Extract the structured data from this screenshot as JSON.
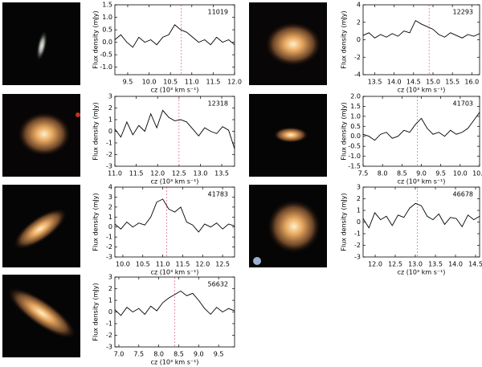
{
  "chart_data": [
    {
      "type": "line",
      "label": "11019",
      "xlabel": "cz (10³ km s⁻¹)",
      "ylabel": "Flux density (mJy)",
      "xlim": [
        9.2,
        12.0
      ],
      "xticks": [
        9.5,
        {
          "value": 10,
          "label": "10.0"
        },
        10.5,
        {
          "value": 11,
          "label": "11.0"
        },
        11.5,
        {
          "value": 12,
          "label": "12.0"
        }
      ],
      "ylim": [
        -1.3,
        1.5
      ],
      "yticks": [
        {
          "value": -1,
          "label": "-1.0"
        },
        -0.5,
        {
          "value": 0,
          "label": "0.0"
        },
        0.5,
        {
          "value": 1,
          "label": "1.0"
        },
        1.5
      ],
      "ref_x": 10.75,
      "x": [
        9.2,
        9.34,
        9.48,
        9.62,
        9.76,
        9.9,
        10.04,
        10.18,
        10.32,
        10.46,
        10.6,
        10.74,
        10.88,
        11.02,
        11.16,
        11.3,
        11.44,
        11.58,
        11.72,
        11.86,
        12.0
      ],
      "values": [
        0.1,
        0.3,
        0.0,
        -0.2,
        0.2,
        0.0,
        0.1,
        -0.1,
        0.2,
        0.3,
        0.7,
        0.5,
        0.4,
        0.2,
        0.0,
        0.1,
        -0.1,
        0.2,
        0.0,
        0.1,
        -0.1
      ]
    },
    {
      "type": "line",
      "label": "12293",
      "xlabel": "cz (10³ km s⁻¹)",
      "ylabel": "Flux density (mJy)",
      "xlim": [
        13.2,
        16.2
      ],
      "xticks": [
        13.5,
        {
          "value": 14,
          "label": "14.0"
        },
        14.5,
        {
          "value": 15,
          "label": "15.0"
        },
        15.5,
        {
          "value": 16,
          "label": "16.0"
        }
      ],
      "ylim": [
        -4,
        4
      ],
      "yticks": [
        -4,
        -2,
        0,
        2,
        4
      ],
      "ref_x": 14.9,
      "x": [
        13.2,
        13.35,
        13.5,
        13.65,
        13.8,
        13.95,
        14.1,
        14.25,
        14.4,
        14.55,
        14.7,
        14.85,
        15.0,
        15.15,
        15.3,
        15.45,
        15.6,
        15.75,
        15.9,
        16.05,
        16.2
      ],
      "values": [
        0.5,
        0.8,
        0.2,
        0.6,
        0.3,
        0.7,
        0.4,
        1.0,
        0.8,
        2.2,
        1.8,
        1.5,
        1.2,
        0.6,
        0.3,
        0.8,
        0.5,
        0.2,
        0.6,
        0.4,
        0.7
      ]
    },
    {
      "type": "line",
      "label": "12318",
      "xlabel": "cz (10³ km s⁻¹)",
      "ylabel": "Flux density (mJy)",
      "xlim": [
        11.0,
        13.8
      ],
      "xticks": [
        {
          "value": 11,
          "label": "11.0"
        },
        11.5,
        {
          "value": 12,
          "label": "12.0"
        },
        12.5,
        {
          "value": 13,
          "label": "13.0"
        },
        13.5
      ],
      "ylim": [
        -3,
        3
      ],
      "yticks": [
        -3,
        -2,
        -1,
        0,
        1,
        2,
        3
      ],
      "ref_x": 12.5,
      "x": [
        11.0,
        11.14,
        11.28,
        11.42,
        11.56,
        11.7,
        11.84,
        11.98,
        12.12,
        12.26,
        12.4,
        12.54,
        12.68,
        12.82,
        12.96,
        13.1,
        13.24,
        13.38,
        13.52,
        13.66,
        13.8
      ],
      "values": [
        0.2,
        -0.5,
        0.8,
        -0.3,
        0.5,
        0.0,
        1.5,
        0.3,
        1.8,
        1.2,
        0.9,
        1.0,
        0.8,
        0.2,
        -0.4,
        0.3,
        0.0,
        -0.2,
        0.4,
        0.1,
        -1.5
      ]
    },
    {
      "type": "line",
      "label": "41703",
      "xlabel": "cz (10³ km s⁻¹)",
      "ylabel": "Flux density (mJy)",
      "xlim": [
        7.5,
        10.5
      ],
      "xticks": [
        7.5,
        {
          "value": 8,
          "label": "8.0"
        },
        8.5,
        {
          "value": 9,
          "label": "9.0"
        },
        9.5,
        {
          "value": 10,
          "label": "10.0"
        },
        10.5
      ],
      "ylim": [
        -1.5,
        2.0
      ],
      "yticks": [
        -1.5,
        {
          "value": -1,
          "label": "-1.0"
        },
        -0.5,
        {
          "value": 0,
          "label": "0.0"
        },
        0.5,
        {
          "value": 1,
          "label": "1.0"
        },
        1.5,
        {
          "value": 2,
          "label": "2.0"
        }
      ],
      "ref_x": 8.9,
      "x": [
        7.5,
        7.65,
        7.8,
        7.95,
        8.1,
        8.25,
        8.4,
        8.55,
        8.7,
        8.85,
        9.0,
        9.15,
        9.3,
        9.45,
        9.6,
        9.75,
        9.9,
        10.05,
        10.2,
        10.35,
        10.5
      ],
      "values": [
        0.1,
        0.0,
        -0.2,
        0.1,
        0.2,
        -0.1,
        0.0,
        0.3,
        0.2,
        0.6,
        0.9,
        0.4,
        0.1,
        0.2,
        0.0,
        0.3,
        0.1,
        0.2,
        0.4,
        0.8,
        1.2
      ]
    },
    {
      "type": "line",
      "label": "41783",
      "xlabel": "cz (10³ km s⁻¹)",
      "ylabel": "Flux density (mJy)",
      "xlim": [
        9.8,
        12.8
      ],
      "xticks": [
        {
          "value": 10,
          "label": "10.0"
        },
        10.5,
        {
          "value": 11,
          "label": "11.0"
        },
        11.5,
        {
          "value": 12,
          "label": "12.0"
        },
        12.5
      ],
      "ylim": [
        -3,
        4
      ],
      "yticks": [
        -3,
        -2,
        -1,
        0,
        1,
        2,
        3,
        4
      ],
      "ref_x": 11.1,
      "x": [
        9.8,
        9.95,
        10.1,
        10.25,
        10.4,
        10.55,
        10.7,
        10.85,
        11.0,
        11.15,
        11.3,
        11.45,
        11.6,
        11.75,
        11.9,
        12.05,
        12.2,
        12.35,
        12.5,
        12.65,
        12.8
      ],
      "values": [
        0.3,
        -0.2,
        0.5,
        0.0,
        0.4,
        0.2,
        1.0,
        2.5,
        2.8,
        1.8,
        1.5,
        2.0,
        0.5,
        0.2,
        -0.5,
        0.3,
        0.0,
        0.4,
        -0.2,
        0.3,
        0.1
      ]
    },
    {
      "type": "line",
      "label": "46678",
      "xlabel": "cz (10³ km s⁻¹)",
      "ylabel": "Flux density (mJy)",
      "xlim": [
        11.7,
        14.6
      ],
      "xticks": [
        {
          "value": 12,
          "label": "12.0"
        },
        12.5,
        {
          "value": 13,
          "label": "13.0"
        },
        13.5,
        {
          "value": 14,
          "label": "14.0"
        },
        14.5
      ],
      "ylim": [
        -3,
        3
      ],
      "yticks": [
        -3,
        -2,
        -1,
        0,
        1,
        2,
        3
      ],
      "ref_x": 13.05,
      "x": [
        11.7,
        11.845,
        11.99,
        12.135,
        12.28,
        12.425,
        12.57,
        12.715,
        12.86,
        13.005,
        13.15,
        13.295,
        13.44,
        13.585,
        13.73,
        13.875,
        14.02,
        14.165,
        14.31,
        14.455,
        14.6
      ],
      "values": [
        0.3,
        -0.5,
        0.8,
        0.2,
        0.5,
        -0.3,
        0.6,
        0.4,
        1.2,
        1.6,
        1.4,
        0.5,
        0.2,
        0.7,
        -0.2,
        0.4,
        0.3,
        -0.4,
        0.6,
        0.2,
        0.5
      ]
    },
    {
      "type": "line",
      "label": "56632",
      "xlabel": "cz (10³ km s⁻¹)",
      "ylabel": "Flux density (mJy)",
      "xlim": [
        6.9,
        9.9
      ],
      "xticks": [
        {
          "value": 7,
          "label": "7.0"
        },
        7.5,
        {
          "value": 8,
          "label": "8.0"
        },
        8.5,
        {
          "value": 9,
          "label": "9.0"
        },
        9.5
      ],
      "ylim": [
        -3,
        3
      ],
      "yticks": [
        -3,
        -2,
        -1,
        0,
        1,
        2,
        3
      ],
      "ref_x": 8.4,
      "x": [
        6.9,
        7.05,
        7.2,
        7.35,
        7.5,
        7.65,
        7.8,
        7.95,
        8.1,
        8.25,
        8.4,
        8.55,
        8.7,
        8.85,
        9.0,
        9.15,
        9.3,
        9.45,
        9.6,
        9.75,
        9.9
      ],
      "values": [
        0.2,
        -0.3,
        0.4,
        0.0,
        0.3,
        -0.2,
        0.5,
        0.1,
        0.8,
        1.2,
        1.5,
        1.8,
        1.4,
        1.6,
        1.0,
        0.3,
        -0.2,
        0.4,
        0.0,
        0.3,
        0.1
      ]
    }
  ]
}
